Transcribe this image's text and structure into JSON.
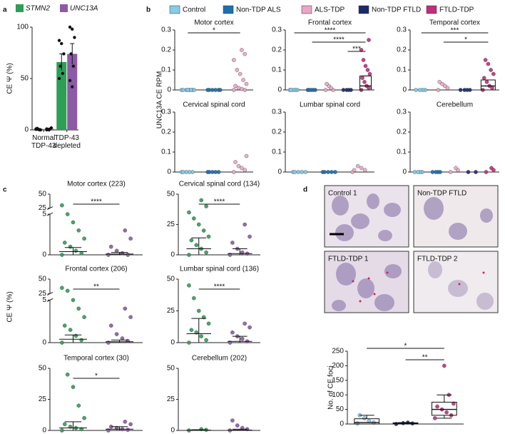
{
  "chart_data": [
    {
      "type": "bar",
      "panel": "a",
      "ylabel": "CE Ψ (%)",
      "categories": [
        "Normal TDP-43",
        "TDP-43 depleted"
      ],
      "ylim": [
        0,
        100
      ],
      "yticks": [
        0,
        50,
        100
      ],
      "series": [
        {
          "name": "STMN2",
          "color": "#2e9e57",
          "values": [
            1,
            66
          ],
          "errors": [
            0.5,
            8
          ],
          "points": [
            [
              1,
              0.5,
              0,
              1.5,
              0,
              0.5
            ],
            [
              87,
              84,
              74,
              62,
              55,
              50
            ]
          ]
        },
        {
          "name": "UNC13A",
          "color": "#8c5aa6",
          "values": [
            1,
            74
          ],
          "errors": [
            0.6,
            10
          ],
          "points": [
            [
              1,
              0,
              2,
              0.5,
              1,
              0
            ],
            [
              100,
              98,
              90,
              74,
              62,
              48,
              42
            ]
          ]
        }
      ]
    },
    {
      "type": "strip",
      "panel": "b",
      "ylabel": "UNC13A CE RPM",
      "series": [
        {
          "name": "Control",
          "color": "#86cbe8"
        },
        {
          "name": "Non-TDP ALS",
          "color": "#1d6fb1"
        },
        {
          "name": "ALS-TDP",
          "color": "#e9a6c6"
        },
        {
          "name": "Non-TDP FTLD",
          "color": "#1b2a6b"
        },
        {
          "name": "FTLD-TDP",
          "color": "#c22c7a"
        }
      ],
      "subplots": [
        {
          "title": "Motor cortex",
          "ylim": [
            0,
            0.3
          ],
          "yticks": [
            0,
            0.1,
            0.2,
            0.3
          ],
          "data": {
            "Control": [
              0,
              0,
              0,
              0,
              0,
              0,
              0,
              0
            ],
            "Non-TDP ALS": [
              0,
              0,
              0,
              0,
              0,
              0
            ],
            "ALS-TDP": [
              0,
              0,
              0.005,
              0.01,
              0.02,
              0.03,
              0.05,
              0.08,
              0.1,
              0.15,
              0.18,
              0.2
            ]
          },
          "annotations": [
            {
              "label": "*",
              "between": [
                "Control",
                "ALS-TDP"
              ]
            }
          ]
        },
        {
          "title": "Frontal cortex",
          "ylim": [
            0,
            0.3
          ],
          "yticks": [
            0,
            0.1,
            0.2,
            0.3
          ],
          "data": {
            "Control": [
              0,
              0,
              0,
              0,
              0
            ],
            "Non-TDP ALS": [
              0,
              0,
              0,
              0,
              0
            ],
            "ALS-TDP": [
              0,
              0,
              0.01,
              0.02,
              0.03
            ],
            "Non-TDP FTLD": [
              0,
              0,
              0,
              0
            ],
            "FTLD-TDP": [
              0,
              0.01,
              0.02,
              0.04,
              0.06,
              0.08,
              0.1,
              0.12,
              0.15,
              0.2,
              0.25
            ]
          },
          "boxes": {
            "FTLD-TDP": [
              0,
              0,
              0.02,
              0.07,
              0.07
            ]
          },
          "annotations": [
            {
              "label": "****",
              "between": [
                "Control",
                "FTLD-TDP"
              ]
            },
            {
              "label": "****",
              "between": [
                "Non-TDP ALS",
                "FTLD-TDP"
              ]
            },
            {
              "label": "***",
              "between": [
                "Non-TDP FTLD",
                "FTLD-TDP"
              ]
            }
          ]
        },
        {
          "title": "Temporal cortex",
          "ylim": [
            0,
            0.3
          ],
          "yticks": [
            0,
            0.1,
            0.2,
            0.3
          ],
          "data": {
            "Control": [
              0,
              0,
              0,
              0
            ],
            "ALS-TDP": [
              0,
              0.01,
              0.02,
              0.03,
              0.04
            ],
            "Non-TDP FTLD": [
              0,
              0,
              0,
              0
            ],
            "FTLD-TDP": [
              0,
              0.01,
              0.02,
              0.04,
              0.06,
              0.08,
              0.1,
              0.13,
              0.15
            ]
          },
          "boxes": {
            "FTLD-TDP": [
              0,
              0,
              0.02,
              0.05,
              0.05
            ]
          },
          "annotations": [
            {
              "label": "***",
              "between": [
                "Control",
                "FTLD-TDP"
              ]
            },
            {
              "label": "*",
              "between": [
                "ALS-TDP",
                "FTLD-TDP"
              ]
            }
          ]
        },
        {
          "title": "Cervical spinal cord",
          "ylim": [
            0,
            0.3
          ],
          "yticks": [
            0,
            0.1,
            0.2,
            0.3
          ],
          "data": {
            "Control": [
              0,
              0,
              0,
              0,
              0
            ],
            "Non-TDP ALS": [
              0,
              0,
              0,
              0,
              0
            ],
            "ALS-TDP": [
              0,
              0.01,
              0.02,
              0.03,
              0.05,
              0.08
            ]
          }
        },
        {
          "title": "Lumbar spinal cord",
          "ylim": [
            0,
            0.3
          ],
          "yticks": [
            0,
            0.1,
            0.2,
            0.3
          ],
          "data": {
            "Control": [
              0,
              0,
              0,
              0,
              0
            ],
            "Non-TDP ALS": [
              0,
              0,
              0,
              0,
              0
            ],
            "ALS-TDP": [
              0,
              0.01,
              0.02,
              0.03,
              0.01
            ]
          }
        },
        {
          "title": "Cerebellum",
          "ylim": [
            0,
            0.3
          ],
          "yticks": [
            0,
            0.1,
            0.2,
            0.3
          ],
          "data": {
            "Control": [
              0,
              0,
              0,
              0
            ],
            "Non-TDP ALS": [
              0,
              0,
              0,
              0
            ],
            "ALS-TDP": [
              0,
              0.01,
              0.02
            ],
            "Non-TDP FTLD": [
              0,
              0
            ],
            "FTLD-TDP": [
              0,
              0.01,
              0.02
            ]
          }
        }
      ]
    },
    {
      "type": "strip",
      "panel": "c",
      "ylabel": "CE Ψ (%)",
      "subplots": [
        {
          "title": "Motor cortex (223)",
          "ylim": [
            0,
            50
          ],
          "yticks": [
            0,
            5,
            25,
            50
          ],
          "ybreak": [
            5,
            25
          ],
          "data": {
            "STMN2": [
              0,
              0.2,
              0.5,
              1,
              1.5,
              2,
              3,
              4,
              5,
              30
            ],
            "UNC13A": [
              0,
              0,
              0.2,
              0.5,
              1,
              2,
              3
            ]
          },
          "summary": {
            "STMN2": [
              0,
              0.4,
              0.9
            ],
            "UNC13A": [
              0,
              0.1,
              0.3
            ]
          },
          "annotations": [
            {
              "label": "****",
              "between": [
                "STMN2",
                "UNC13A"
              ]
            }
          ]
        },
        {
          "title": "Cervical spinal cord (134)",
          "ylim": [
            0,
            50
          ],
          "yticks": [
            0,
            25,
            50
          ],
          "data": {
            "STMN2": [
              0,
              2,
              5,
              8,
              12,
              15,
              20,
              25,
              30,
              35,
              40,
              45
            ],
            "UNC13A": [
              0,
              1,
              2,
              5,
              10,
              15,
              25
            ]
          },
          "summary": {
            "STMN2": [
              0,
              5,
              14
            ],
            "UNC13A": [
              0,
              1,
              5
            ]
          },
          "annotations": [
            {
              "label": "****",
              "between": [
                "STMN2",
                "UNC13A"
              ]
            }
          ]
        },
        {
          "title": "Frontal cortex (206)",
          "ylim": [
            0,
            50
          ],
          "yticks": [
            0,
            5,
            25,
            50
          ],
          "ybreak": [
            5,
            25
          ],
          "data": {
            "STMN2": [
              0,
              0.3,
              0.8,
              1.5,
              2,
              3,
              4,
              5,
              30,
              35
            ],
            "UNC13A": [
              0,
              0.2,
              0.5,
              1,
              2,
              3,
              4
            ]
          },
          "summary": {
            "STMN2": [
              0,
              0.4,
              0.9
            ],
            "UNC13A": [
              0,
              0.1,
              0.3
            ]
          },
          "annotations": [
            {
              "label": "**",
              "between": [
                "STMN2",
                "UNC13A"
              ]
            }
          ]
        },
        {
          "title": "Lumbar spinal cord (136)",
          "ylim": [
            0,
            50
          ],
          "yticks": [
            0,
            25,
            50
          ],
          "data": {
            "STMN2": [
              0,
              2,
              5,
              8,
              10,
              15,
              20,
              25,
              35,
              45
            ],
            "UNC13A": [
              0,
              1,
              3,
              5,
              8,
              12,
              15
            ]
          },
          "summary": {
            "STMN2": [
              0,
              7,
              19
            ],
            "UNC13A": [
              0,
              1,
              5
            ]
          },
          "annotations": [
            {
              "label": "****",
              "between": [
                "STMN2",
                "UNC13A"
              ]
            }
          ]
        },
        {
          "title": "Temporal cortex (30)",
          "ylim": [
            0,
            50
          ],
          "yticks": [
            0,
            25,
            50
          ],
          "data": {
            "STMN2": [
              0,
              1,
              2,
              3,
              5,
              10,
              20,
              35,
              45
            ],
            "UNC13A": [
              0,
              0.5,
              1,
              2,
              3,
              5,
              7
            ]
          },
          "summary": {
            "STMN2": [
              0,
              2,
              7
            ],
            "UNC13A": [
              0,
              1,
              3
            ]
          },
          "annotations": [
            {
              "label": "*",
              "between": [
                "STMN2",
                "UNC13A"
              ]
            }
          ]
        },
        {
          "title": "Cerebellum (202)",
          "ylim": [
            0,
            50
          ],
          "yticks": [
            0,
            25,
            50
          ],
          "data": {
            "STMN2": [
              0,
              0.5,
              1
            ],
            "UNC13A": [
              0,
              1,
              2,
              4,
              8
            ]
          },
          "summary": {
            "STMN2": [
              0,
              0.2,
              0.6
            ],
            "UNC13A": [
              0,
              0.3,
              1
            ]
          }
        }
      ]
    },
    {
      "type": "images",
      "panel": "d",
      "labels": [
        "Control 1",
        "Non-TDP FTLD",
        "FTLD-TDP 1",
        "FTLD-TDP 2"
      ]
    },
    {
      "type": "strip",
      "ylabel": "No. of CE foci",
      "subplots": [
        {
          "ylim": [
            0,
            250
          ],
          "yticks": [
            0,
            50,
            100,
            150,
            200,
            250
          ],
          "data": {
            "Control": [
              2,
              5,
              10,
              20,
              30
            ],
            "Non-TDP FTLD": [
              0,
              2,
              5,
              3
            ],
            "FTLD-TDP": [
              20,
              30,
              40,
              50,
              60,
              70,
              100,
              200
            ]
          },
          "boxes": {
            "Control": [
              0,
              0,
              5,
              18,
              30
            ],
            "Non-TDP FTLD": [
              0,
              0,
              2,
              4,
              5
            ],
            "FTLD-TDP": [
              20,
              30,
              50,
              75,
              100
            ]
          },
          "annotations": [
            {
              "label": "*",
              "between": [
                "Control",
                "FTLD-TDP"
              ]
            },
            {
              "label": "**",
              "between": [
                "Non-TDP FTLD",
                "FTLD-TDP"
              ]
            }
          ]
        }
      ]
    }
  ]
}
